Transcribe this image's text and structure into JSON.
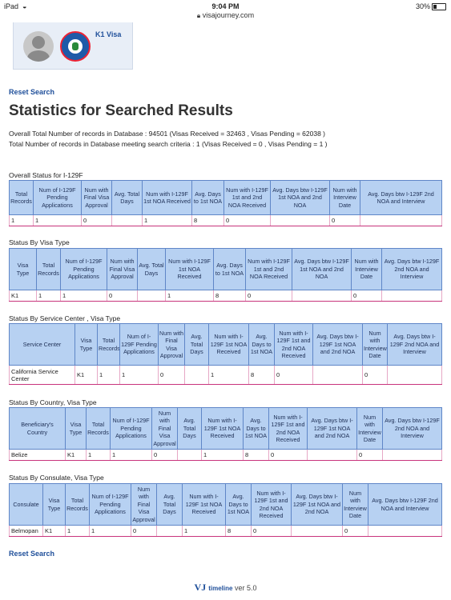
{
  "statusbar": {
    "device": "iPad",
    "time": "9:04 PM",
    "url": "visajourney.com",
    "battery": "30%"
  },
  "profile": {
    "visa_label": "K1 Visa"
  },
  "reset_label": "Reset Search",
  "page_title": "Statistics for Searched Results",
  "summary": {
    "line1": "Overall Total Number of records in Database : 94501 (Visas Received = 32463 , Visas Pending = 62038 )",
    "line2": "Total Number of records in Database meeting search criteria : 1 (Visas Received = 0 , Visas Pending = 1 )"
  },
  "sections": [
    {
      "title": "Overall Status for I-129F",
      "headers": [
        "Total Records",
        "Num of I-129F Pending Applications",
        "Num with Final Visa Approval",
        "Avg. Total Days",
        "Num with I-129F 1st NOA Received",
        "Avg. Days to 1st NOA",
        "Num with I-129F 1st and 2nd NOA Received",
        "Avg. Days btw I-129F 1st NOA and 2nd NOA",
        "Num with Interview Date",
        "Avg. Days btw I-129F 2nd NOA and Interview"
      ],
      "row": [
        "1",
        "1",
        "0",
        "",
        "1",
        "8",
        "0",
        "",
        "0",
        ""
      ]
    },
    {
      "title": "Status By Visa Type",
      "headers": [
        "Visa Type",
        "Total Records",
        "Num of I-129F Pending Applications",
        "Num with Final Visa Approval",
        "Avg. Total Days",
        "Num with I-129F 1st NOA Received",
        "Avg. Days to 1st NOA",
        "Num with I-129F 1st and 2nd NOA Received",
        "Avg. Days btw I-129F 1st NOA and 2nd NOA",
        "Num with Interview Date",
        "Avg. Days btw I-129F 2nd NOA and Interview"
      ],
      "row": [
        "K1",
        "1",
        "1",
        "0",
        "",
        "1",
        "8",
        "0",
        "",
        "0",
        ""
      ]
    },
    {
      "title": "Status By Service Center , Visa Type",
      "headers": [
        "Service Center",
        "Visa Type",
        "Total Records",
        "Num of I-129F Pending Applications",
        "Num with Final Visa Approval",
        "Avg. Total Days",
        "Num with I-129F 1st NOA Received",
        "Avg. Days to 1st NOA",
        "Num with I-129F 1st and 2nd NOA Received",
        "Avg. Days btw I-129F 1st NOA and 2nd NOA",
        "Num with Interview Date",
        "Avg. Days btw I-129F 2nd NOA and Interview"
      ],
      "row": [
        "California Service Center",
        "K1",
        "1",
        "1",
        "0",
        "",
        "1",
        "8",
        "0",
        "",
        "0",
        ""
      ]
    },
    {
      "title": "Status By Country, Visa Type",
      "headers": [
        "Beneficiary's Country",
        "Visa Type",
        "Total Records",
        "Num of I-129F Pending Applications",
        "Num with Final Visa Approval",
        "Avg. Total Days",
        "Num with I-129F 1st NOA Received",
        "Avg. Days to 1st NOA",
        "Num with I-129F 1st and 2nd NOA Received",
        "Avg. Days btw I-129F 1st NOA and 2nd NOA",
        "Num with Interview Date",
        "Avg. Days btw I-129F 2nd NOA and Interview"
      ],
      "row": [
        "Belize",
        "K1",
        "1",
        "1",
        "0",
        "",
        "1",
        "8",
        "0",
        "",
        "0",
        ""
      ]
    },
    {
      "title": "Status By Consulate, Visa Type",
      "headers": [
        "Consulate",
        "Visa Type",
        "Total Records",
        "Num of I-129F Pending Applications",
        "Num with Final Visa Approval",
        "Avg. Total Days",
        "Num with I-129F 1st NOA Received",
        "Avg. Days to 1st NOA",
        "Num with I-129F 1st and 2nd NOA Received",
        "Avg. Days btw I-129F 1st NOA and 2nd NOA",
        "Num with Interview Date",
        "Avg. Days btw I-129F 2nd NOA and Interview"
      ],
      "row": [
        "Belmopan",
        "K1",
        "1",
        "1",
        "0",
        "",
        "1",
        "8",
        "0",
        "",
        "0",
        ""
      ]
    }
  ],
  "footer": {
    "logo_vj": "VJ",
    "logo_word": "timeline",
    "version": "ver 5.0"
  }
}
